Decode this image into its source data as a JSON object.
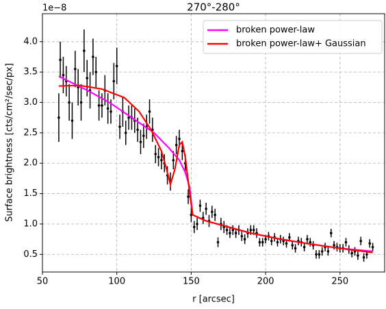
{
  "chart_data": {
    "type": "scatter",
    "title": "270°-280°",
    "x_label": "r [arcsec]",
    "y_label": "Surface brightness [cts/cm²/sec/px]",
    "y_offset_label": "1e−8",
    "xlim": [
      50,
      280
    ],
    "ylim": [
      0.21,
      4.46
    ],
    "xticks": [
      50,
      100,
      150,
      200,
      250
    ],
    "yticks": [
      0.5,
      {
        "value": 1,
        "label": "1.0"
      },
      1.5,
      {
        "value": 2,
        "label": "2.0"
      },
      2.5,
      {
        "value": 3,
        "label": "3.0"
      },
      3.5,
      {
        "value": 4,
        "label": "4.0"
      }
    ],
    "grid": true,
    "legend": "upper right",
    "series": [
      {
        "kind": "errorbar",
        "color": "#000000",
        "x": [
          61,
          62,
          64,
          66,
          68,
          70,
          72,
          74,
          76,
          78,
          80,
          82,
          84,
          86,
          88,
          90,
          92,
          94,
          96,
          98,
          100,
          102,
          104,
          106,
          108,
          110,
          112,
          114,
          116,
          118,
          120,
          122,
          124,
          126,
          128,
          130,
          132,
          134,
          136,
          138,
          140,
          142,
          144,
          146,
          148,
          150,
          152,
          154,
          156,
          158,
          160,
          162,
          164,
          166,
          168,
          170,
          172,
          174,
          176,
          178,
          180,
          182,
          184,
          186,
          188,
          190,
          192,
          194,
          196,
          198,
          200,
          202,
          204,
          206,
          208,
          210,
          212,
          214,
          216,
          218,
          220,
          222,
          224,
          226,
          228,
          230,
          232,
          234,
          236,
          238,
          240,
          242,
          244,
          246,
          248,
          250,
          252,
          254,
          256,
          258,
          260,
          262,
          264,
          266,
          268,
          270,
          272
        ],
        "values": [
          2.75,
          3.7,
          3.45,
          3.35,
          3.0,
          2.7,
          3.55,
          3.25,
          3.0,
          3.85,
          3.4,
          3.2,
          3.75,
          3.5,
          2.95,
          2.95,
          3.2,
          2.9,
          2.85,
          3.35,
          3.6,
          2.6,
          2.85,
          2.5,
          2.75,
          2.75,
          2.7,
          2.55,
          2.35,
          2.45,
          2.6,
          2.85,
          2.55,
          2.15,
          2.1,
          2.05,
          2.0,
          1.8,
          1.7,
          2.05,
          2.3,
          2.4,
          2.2,
          2.0,
          1.45,
          1.15,
          0.95,
          1.0,
          1.3,
          1.1,
          1.25,
          1.05,
          1.2,
          1.15,
          0.7,
          1.0,
          0.95,
          0.9,
          0.85,
          0.9,
          0.85,
          0.9,
          0.8,
          0.75,
          0.85,
          0.9,
          0.9,
          0.85,
          0.7,
          0.7,
          0.75,
          0.8,
          0.72,
          0.78,
          0.7,
          0.75,
          0.72,
          0.68,
          0.78,
          0.65,
          0.6,
          0.72,
          0.7,
          0.62,
          0.75,
          0.7,
          0.65,
          0.5,
          0.5,
          0.55,
          0.62,
          0.55,
          0.85,
          0.65,
          0.62,
          0.6,
          0.6,
          0.7,
          0.58,
          0.52,
          0.55,
          0.48,
          0.72,
          0.45,
          0.5,
          0.68,
          0.62
        ],
        "errors": [
          0.4,
          0.3,
          0.3,
          0.25,
          0.3,
          0.3,
          0.3,
          0.3,
          0.3,
          0.35,
          0.3,
          0.3,
          0.3,
          0.25,
          0.25,
          0.2,
          0.25,
          0.25,
          0.2,
          0.3,
          0.3,
          0.2,
          0.25,
          0.2,
          0.2,
          0.2,
          0.2,
          0.2,
          0.2,
          0.2,
          0.2,
          0.2,
          0.2,
          0.15,
          0.15,
          0.15,
          0.15,
          0.15,
          0.15,
          0.15,
          0.15,
          0.15,
          0.15,
          0.15,
          0.12,
          0.12,
          0.1,
          0.1,
          0.1,
          0.1,
          0.1,
          0.1,
          0.1,
          0.1,
          0.08,
          0.1,
          0.1,
          0.08,
          0.08,
          0.08,
          0.08,
          0.08,
          0.08,
          0.08,
          0.08,
          0.08,
          0.08,
          0.08,
          0.07,
          0.07,
          0.07,
          0.07,
          0.07,
          0.07,
          0.07,
          0.07,
          0.07,
          0.07,
          0.07,
          0.07,
          0.07,
          0.07,
          0.07,
          0.07,
          0.07,
          0.07,
          0.07,
          0.07,
          0.07,
          0.07,
          0.07,
          0.07,
          0.07,
          0.07,
          0.07,
          0.07,
          0.07,
          0.07,
          0.07,
          0.07,
          0.07,
          0.07,
          0.07,
          0.07,
          0.07,
          0.07,
          0.07
        ]
      },
      {
        "kind": "line",
        "name": "broken power-law",
        "color": "#ff00ff",
        "x": [
          61,
          80,
          95,
          110,
          125,
          135,
          142,
          146,
          149,
          151,
          160,
          175,
          190,
          210,
          230,
          250,
          272
        ],
        "values": [
          3.43,
          3.2,
          3.0,
          2.75,
          2.5,
          2.25,
          2.05,
          1.85,
          1.6,
          1.15,
          1.05,
          0.95,
          0.85,
          0.75,
          0.67,
          0.6,
          0.55
        ]
      },
      {
        "kind": "line",
        "name": "broken power-law+ Gaussian",
        "color": "#ff0000",
        "x": [
          61,
          75,
          90,
          105,
          115,
          123,
          130,
          134,
          136,
          139,
          142,
          144,
          146,
          149,
          151,
          160,
          175,
          190,
          210,
          230,
          250,
          272
        ],
        "values": [
          3.27,
          3.28,
          3.22,
          3.08,
          2.85,
          2.55,
          2.2,
          1.85,
          1.65,
          1.9,
          2.3,
          2.35,
          2.1,
          1.5,
          1.15,
          1.05,
          0.95,
          0.85,
          0.75,
          0.67,
          0.6,
          0.53
        ]
      }
    ]
  }
}
